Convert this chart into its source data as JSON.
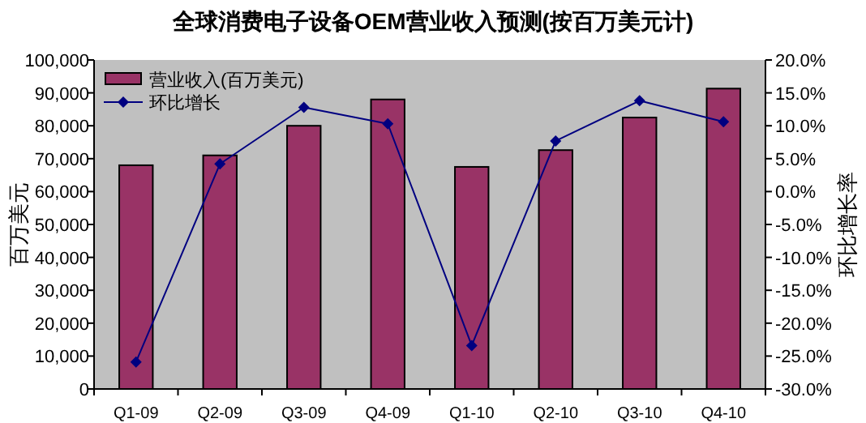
{
  "chart_data": {
    "type": "bar",
    "title": "全球消费电子设备OEM营业收入预测(按百万美元计)",
    "ylabel": "百万美元",
    "y2label": "环比增长率",
    "categories": [
      "Q1-09",
      "Q2-09",
      "Q3-09",
      "Q4-09",
      "Q1-10",
      "Q2-10",
      "Q3-10",
      "Q4-10"
    ],
    "series": [
      {
        "name": "营业收入(百万美元)",
        "color": "#993366",
        "values": [
          68000,
          71000,
          80000,
          88000,
          67500,
          72600,
          82500,
          91300
        ]
      },
      {
        "name": "环比增长",
        "type": "line",
        "axis": "y2",
        "color": "#000080",
        "marker": "diamond",
        "values": [
          -25.9,
          4.2,
          12.8,
          10.3,
          -23.4,
          7.7,
          13.8,
          10.6
        ]
      }
    ],
    "ylim": [
      0,
      100000
    ],
    "yticks": [
      {
        "value": 0,
        "label": "0"
      },
      {
        "value": 10000,
        "label": "10,000"
      },
      {
        "value": 20000,
        "label": "20,000"
      },
      {
        "value": 30000,
        "label": "30,000"
      },
      {
        "value": 40000,
        "label": "40,000"
      },
      {
        "value": 50000,
        "label": "50,000"
      },
      {
        "value": 60000,
        "label": "60,000"
      },
      {
        "value": 70000,
        "label": "70,000"
      },
      {
        "value": 80000,
        "label": "80,000"
      },
      {
        "value": 90000,
        "label": "90,000"
      },
      {
        "value": 100000,
        "label": "100,000"
      }
    ],
    "y2lim": [
      -30,
      20
    ],
    "y2ticks": [
      {
        "value": -30,
        "label": "-30.0%"
      },
      {
        "value": -25,
        "label": "-25.0%"
      },
      {
        "value": -20,
        "label": "-20.0%"
      },
      {
        "value": -15,
        "label": "-15.0%"
      },
      {
        "value": -10,
        "label": "-10.0%"
      },
      {
        "value": -5,
        "label": "-5.0%"
      },
      {
        "value": 0,
        "label": "0.0%"
      },
      {
        "value": 5,
        "label": "5.0%"
      },
      {
        "value": 10,
        "label": "10.0%"
      },
      {
        "value": 15,
        "label": "15.0%"
      },
      {
        "value": 20,
        "label": "20.0%"
      }
    ],
    "grid": false,
    "legend": "top left"
  }
}
